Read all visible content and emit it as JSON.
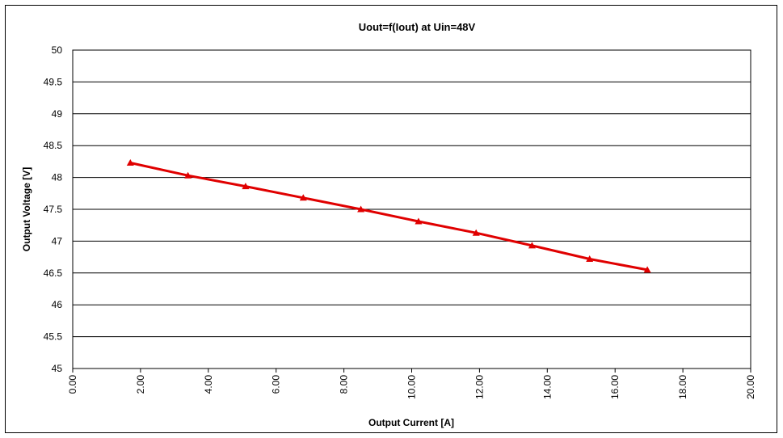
{
  "chart_data": {
    "type": "line",
    "title": "Uout=f(Iout) at Uin=48V",
    "xlabel": "Output Current [A]",
    "ylabel": "Output Voltage [V]",
    "xlim": [
      0,
      20
    ],
    "ylim": [
      45,
      50
    ],
    "x_ticks": [
      "0.00",
      "2.00",
      "4.00",
      "6.00",
      "8.00",
      "10.00",
      "12.00",
      "14.00",
      "16.00",
      "18.00",
      "20.00"
    ],
    "x_tick_values": [
      0,
      2,
      4,
      6,
      8,
      10,
      12,
      14,
      16,
      18,
      20
    ],
    "y_ticks": [
      "45",
      "45.5",
      "46",
      "46.5",
      "47",
      "47.5",
      "48",
      "48.5",
      "49",
      "49.5",
      "50"
    ],
    "y_tick_values": [
      45,
      45.5,
      46,
      46.5,
      47,
      47.5,
      48,
      48.5,
      49,
      49.5,
      50
    ],
    "grid": "horizontal",
    "legend": "none",
    "series": [
      {
        "marker": "triangle",
        "color": "#e00000",
        "points": [
          {
            "x": 1.7,
            "y": 48.23
          },
          {
            "x": 3.4,
            "y": 48.03
          },
          {
            "x": 5.1,
            "y": 47.86
          },
          {
            "x": 6.8,
            "y": 47.68
          },
          {
            "x": 8.5,
            "y": 47.5
          },
          {
            "x": 10.2,
            "y": 47.31
          },
          {
            "x": 11.9,
            "y": 47.13
          },
          {
            "x": 13.55,
            "y": 46.93
          },
          {
            "x": 15.25,
            "y": 46.72
          },
          {
            "x": 16.95,
            "y": 46.55
          }
        ]
      }
    ]
  }
}
